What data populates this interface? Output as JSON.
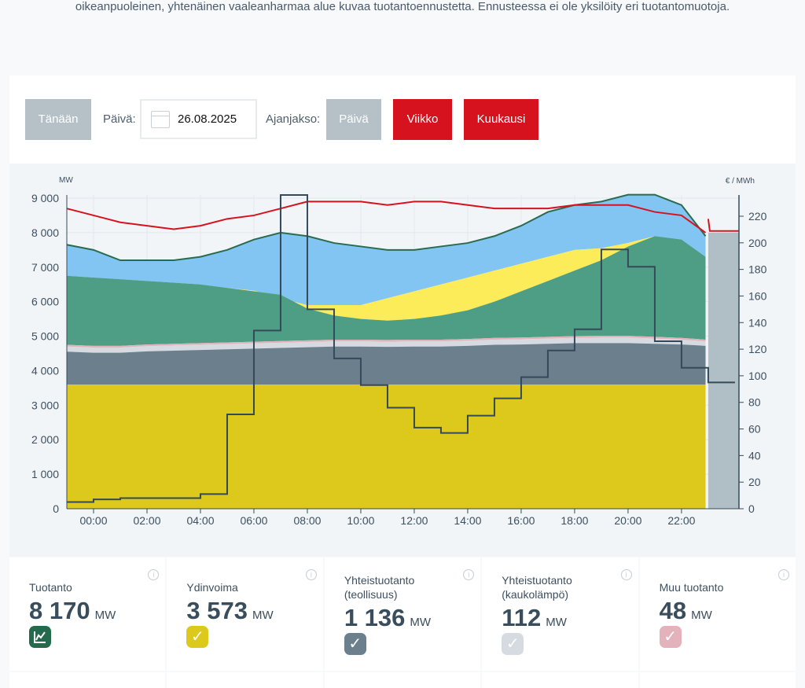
{
  "intro_text": "oikeanpuoleinen, yhtenäinen vaaleanharmaa alue kuvaa tuotantoennustetta. Ennusteessa ei ole yksilöity eri tuotantomuotoja.",
  "controls": {
    "today": "Tänään",
    "day_label": "Päivä:",
    "date": "26.08.2025",
    "period_label": "Ajanjakso:",
    "periods": [
      "Päivä",
      "Viikko",
      "Kuukausi"
    ]
  },
  "colors": {
    "nuclear": "#dcc91c",
    "chp_industry": "#6b7f8c",
    "chp_district": "#d5dbe0",
    "other": "#e4b2bb",
    "wind": "#4e9e86",
    "solar": "#fdec5a",
    "hydro": "#82c4f2",
    "total": "#2a6b4f",
    "consumption": "#d7121f",
    "price": "#34495a",
    "forecast": "#b0bec6"
  },
  "chart_data": {
    "type": "area",
    "left_unit": "MW",
    "right_unit": "€ / MWh",
    "ylim": [
      0,
      9000
    ],
    "y2lim": [
      0,
      240
    ],
    "yticks": [
      "0",
      "1 000",
      "2 000",
      "3 000",
      "4 000",
      "5 000",
      "6 000",
      "7 000",
      "8 000",
      "9 000"
    ],
    "y2ticks": [
      "0",
      "20",
      "40",
      "60",
      "80",
      "100",
      "120",
      "140",
      "160",
      "180",
      "200",
      "220"
    ],
    "xticks": [
      "00:00",
      "02:00",
      "04:00",
      "06:00",
      "08:00",
      "10:00",
      "12:00",
      "14:00",
      "16:00",
      "18:00",
      "20:00",
      "22:00"
    ],
    "xlim_hours": [
      -1,
      24.15
    ],
    "hours": [
      -1,
      0,
      1,
      2,
      3,
      4,
      5,
      6,
      7,
      8,
      9,
      10,
      11,
      12,
      13,
      14,
      15,
      16,
      17,
      18,
      19,
      20,
      21,
      22,
      22.9
    ],
    "nuclear": [
      3600,
      3600,
      3600,
      3600,
      3600,
      3600,
      3600,
      3600,
      3600,
      3600,
      3600,
      3600,
      3600,
      3600,
      3600,
      3600,
      3600,
      3600,
      3600,
      3600,
      3600,
      3600,
      3600,
      3600,
      3600
    ],
    "chp_industry_top": [
      4550,
      4520,
      4520,
      4560,
      4580,
      4600,
      4620,
      4640,
      4660,
      4680,
      4700,
      4700,
      4690,
      4700,
      4700,
      4720,
      4750,
      4760,
      4780,
      4800,
      4800,
      4800,
      4780,
      4760,
      4720
    ],
    "chp_district_top": [
      4700,
      4670,
      4670,
      4710,
      4730,
      4750,
      4770,
      4790,
      4810,
      4830,
      4850,
      4850,
      4840,
      4850,
      4850,
      4870,
      4900,
      4910,
      4930,
      4950,
      4960,
      4960,
      4930,
      4900,
      4850
    ],
    "other_top": [
      4750,
      4720,
      4720,
      4760,
      4780,
      4800,
      4820,
      4840,
      4860,
      4880,
      4900,
      4900,
      4890,
      4900,
      4900,
      4920,
      4950,
      4960,
      4980,
      5000,
      5010,
      5010,
      4980,
      4950,
      4900
    ],
    "wind_top": [
      6750,
      6700,
      6650,
      6600,
      6550,
      6500,
      6400,
      6300,
      6200,
      5800,
      5600,
      5500,
      5450,
      5500,
      5600,
      5750,
      6000,
      6300,
      6600,
      6900,
      7200,
      7600,
      7900,
      7800,
      7300
    ],
    "solar_top": [
      6750,
      6700,
      6650,
      6600,
      6550,
      6500,
      6400,
      6320,
      6100,
      5900,
      5900,
      5900,
      6100,
      6300,
      6500,
      6700,
      6900,
      7100,
      7300,
      7500,
      7550,
      7700,
      7900,
      7800,
      7300
    ],
    "total": [
      7650,
      7500,
      7200,
      7200,
      7200,
      7300,
      7500,
      7800,
      8000,
      7900,
      7700,
      7600,
      7500,
      7500,
      7600,
      7700,
      7900,
      8200,
      8600,
      8800,
      8900,
      9100,
      9100,
      8800,
      7900
    ],
    "consumption": [
      8700,
      8500,
      8300,
      8200,
      8100,
      8200,
      8400,
      8500,
      8700,
      8900,
      8900,
      8900,
      8800,
      8900,
      8900,
      8800,
      8700,
      8700,
      8700,
      8800,
      8800,
      8800,
      8600,
      8500,
      8000
    ],
    "forecast": {
      "from_hour": 23,
      "production": 8000,
      "consumption": [
        8400,
        8050
      ]
    },
    "price_hours": [
      -1,
      0,
      1,
      2,
      3,
      4,
      5,
      6,
      7,
      8,
      9,
      10,
      11,
      12,
      13,
      14,
      15,
      16,
      17,
      18,
      19,
      20,
      21,
      22,
      23
    ],
    "price": [
      5,
      7,
      8,
      8,
      8,
      11,
      71,
      134,
      236,
      150,
      113,
      93,
      76,
      61,
      57,
      70,
      83,
      99,
      119,
      135,
      195,
      182,
      126,
      106,
      95
    ]
  },
  "cards": [
    {
      "title": "Tuotanto",
      "value": "8 170",
      "unit": "MW",
      "icon": "chart-icon"
    },
    {
      "title": "Ydinvoima",
      "value": "3 573",
      "unit": "MW",
      "icon": "check-icon"
    },
    {
      "title": "Yhteistuotanto",
      "title2": "(teollisuus)",
      "value": "1 136",
      "unit": "MW",
      "icon": "check-icon"
    },
    {
      "title": "Yhteistuotanto",
      "title2": "(kaukolämpö)",
      "value": "112",
      "unit": "MW",
      "icon": "check-icon"
    },
    {
      "title": "Muu tuotanto",
      "value": "48",
      "unit": "MW",
      "icon": "check-icon"
    }
  ]
}
